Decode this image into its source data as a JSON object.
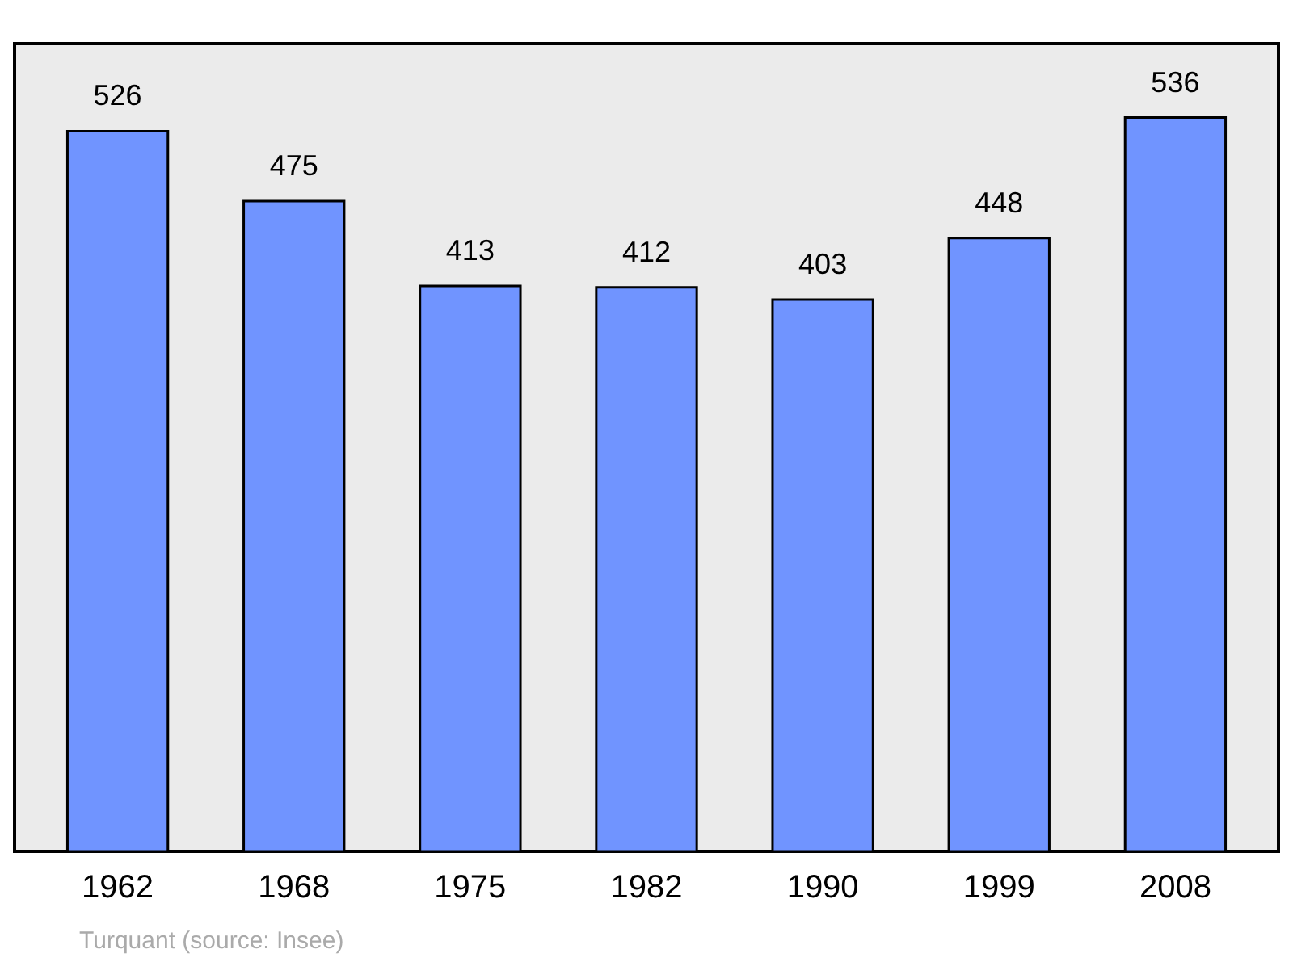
{
  "chart_data": {
    "type": "bar",
    "categories": [
      "1962",
      "1968",
      "1975",
      "1982",
      "1990",
      "1999",
      "2008"
    ],
    "values": [
      526,
      475,
      413,
      412,
      403,
      448,
      536
    ],
    "color": "#7094ff",
    "ylim": [
      0,
      590
    ],
    "data_labels": true,
    "annotations": [
      "Turquant    (source: Insee)"
    ]
  }
}
